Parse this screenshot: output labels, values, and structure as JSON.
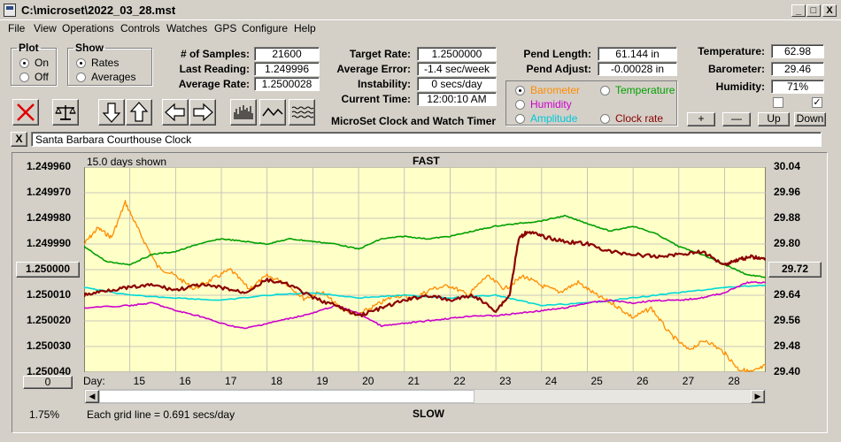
{
  "window": {
    "title": "C:\\microset\\2022_03_28.mst",
    "min": "_",
    "max": "□",
    "close": "X"
  },
  "menu": [
    "File",
    "View",
    "Operations",
    "Controls",
    "Watches",
    "GPS",
    "Configure",
    "Help"
  ],
  "plot": {
    "legend": "Plot",
    "on": "On",
    "off": "Off",
    "selected": "On"
  },
  "show": {
    "legend": "Show",
    "rates": "Rates",
    "averages": "Averages",
    "selected": "Rates"
  },
  "stats": {
    "samples_label": "# of Samples:",
    "samples": "21600",
    "last_label": "Last Reading:",
    "last": "1.249996",
    "avg_rate_label": "Average Rate:",
    "avg_rate": "1.2500028",
    "target_label": "Target Rate:",
    "target": "1.2500000",
    "avg_err_label": "Average Error:",
    "avg_err": "-1.4 sec/week",
    "instab_label": "Instability:",
    "instab": "0 secs/day",
    "time_label": "Current Time:",
    "time": "12:00:10 AM",
    "pend_len_label": "Pend Length:",
    "pend_len": "61.144 in",
    "pend_adj_label": "Pend Adjust:",
    "pend_adj": "-0.00028 in",
    "temp_label": "Temperature:",
    "temp": "62.98",
    "baro_label": "Barometer:",
    "baro": "29.46",
    "hum_label": "Humidity:",
    "hum": "71%"
  },
  "app_title": "MicroSet Clock and Watch Timer",
  "series_select": {
    "barometer": "Barometer",
    "temperature": "Temperature",
    "humidity": "Humidity",
    "amplitude": "Amplitude",
    "clock": "Clock rate",
    "selected": "Barometer",
    "colors": {
      "barometer": "#ff8c00",
      "temperature": "#00a000",
      "humidity": "#cc00cc",
      "amplitude": "#00d8d8",
      "clock": "#8b0000"
    }
  },
  "small_buttons": {
    "plus": "+",
    "minus": "—",
    "up": "Up",
    "down": "Down"
  },
  "watch_name": "Santa Barbara Courthouse Clock",
  "close_x": "X",
  "chart_data": {
    "type": "line",
    "top_label": "FAST",
    "bottom_label": "SLOW",
    "days_shown": "15.0 days shown",
    "grid_note": "Each grid line = 0.691 secs/day",
    "left_value_box": "1.250000",
    "right_value_box": "29.72",
    "bottom_left_box": "0",
    "percent": "1.75%",
    "x_prefix": "Day:",
    "x_ticks": [
      "15",
      "16",
      "17",
      "18",
      "19",
      "20",
      "21",
      "22",
      "23",
      "24",
      "25",
      "26",
      "27",
      "28"
    ],
    "y_left_ticks": [
      "1.249960",
      "1.249970",
      "1.249980",
      "1.249990",
      "1.250000",
      "1.250010",
      "1.250020",
      "1.250030",
      "1.250040"
    ],
    "y_right_ticks": [
      "30.04",
      "29.96",
      "29.88",
      "29.80",
      "29.72",
      "29.64",
      "29.56",
      "29.48",
      "29.40"
    ],
    "xlim": [
      14.0,
      28.9
    ],
    "y_left_range": [
      1.25004,
      1.24996
    ],
    "y_right_range": [
      29.4,
      30.04
    ],
    "series": [
      {
        "key": "barometer",
        "x": [
          14.0,
          14.3,
          14.6,
          14.9,
          15.2,
          15.6,
          16.0,
          16.4,
          16.8,
          17.2,
          17.6,
          18.0,
          18.4,
          18.8,
          19.2,
          19.6,
          20.0,
          20.4,
          20.8,
          21.2,
          21.6,
          22.0,
          22.4,
          22.8,
          23.2,
          23.6,
          24.0,
          24.4,
          24.8,
          25.2,
          25.6,
          26.0,
          26.4,
          26.8,
          27.2,
          27.6,
          28.0,
          28.3,
          28.6,
          28.9
        ],
        "y": [
          29.8,
          29.85,
          29.82,
          29.93,
          29.84,
          29.73,
          29.7,
          29.66,
          29.69,
          29.72,
          29.66,
          29.7,
          29.68,
          29.63,
          29.65,
          29.6,
          29.58,
          29.61,
          29.64,
          29.63,
          29.66,
          29.67,
          29.64,
          29.7,
          29.66,
          29.7,
          29.67,
          29.65,
          29.68,
          29.64,
          29.61,
          29.57,
          29.6,
          29.52,
          29.47,
          29.5,
          29.46,
          29.41,
          29.4,
          29.42
        ]
      },
      {
        "key": "temperature",
        "x": [
          14.0,
          14.5,
          15.0,
          15.5,
          16.0,
          16.5,
          17.0,
          17.5,
          18.0,
          18.5,
          19.0,
          19.5,
          20.0,
          20.5,
          21.0,
          21.5,
          22.0,
          22.5,
          23.0,
          23.5,
          24.0,
          24.5,
          25.0,
          25.5,
          26.0,
          26.5,
          27.0,
          27.5,
          28.0,
          28.5,
          28.9
        ],
        "y": [
          1.249991,
          1.249997,
          1.249998,
          1.249994,
          1.249993,
          1.24999,
          1.249988,
          1.249989,
          1.24999,
          1.249988,
          1.249989,
          1.24999,
          1.249992,
          1.249988,
          1.249987,
          1.249988,
          1.249987,
          1.249985,
          1.249983,
          1.249982,
          1.249981,
          1.249979,
          1.249982,
          1.249985,
          1.249983,
          1.249986,
          1.249991,
          1.249994,
          1.249998,
          1.250002,
          1.250003
        ]
      },
      {
        "key": "amplitude",
        "x": [
          14.0,
          15.0,
          16.0,
          17.0,
          18.0,
          19.0,
          20.0,
          21.0,
          22.0,
          23.0,
          23.5,
          24.0,
          25.0,
          26.0,
          27.0,
          28.0,
          28.9
        ],
        "y": [
          1.250007,
          1.25001,
          1.250011,
          1.250012,
          1.25001,
          1.250009,
          1.250011,
          1.25001,
          1.250011,
          1.25001,
          1.250012,
          1.250014,
          1.250013,
          1.250011,
          1.250009,
          1.250007,
          1.250006
        ]
      },
      {
        "key": "humidity",
        "x": [
          14.0,
          15.0,
          15.5,
          16.0,
          16.5,
          17.0,
          17.5,
          18.0,
          18.5,
          19.0,
          19.5,
          20.0,
          20.5,
          21.0,
          21.5,
          22.0,
          22.5,
          23.0,
          23.5,
          24.0,
          24.5,
          25.0,
          25.5,
          26.0,
          26.5,
          27.0,
          27.5,
          28.0,
          28.5,
          28.9
        ],
        "y": [
          1.250015,
          1.250014,
          1.250013,
          1.250016,
          1.250018,
          1.250021,
          1.250023,
          1.250021,
          1.250019,
          1.250017,
          1.250014,
          1.250017,
          1.250022,
          1.250021,
          1.25002,
          1.250019,
          1.250018,
          1.250018,
          1.250017,
          1.250016,
          1.250015,
          1.250013,
          1.250012,
          1.250013,
          1.250012,
          1.250012,
          1.250011,
          1.250009,
          1.250005,
          1.250005
        ]
      },
      {
        "key": "clock",
        "x": [
          14.0,
          14.5,
          15.0,
          15.5,
          16.0,
          16.5,
          17.0,
          17.5,
          18.0,
          18.5,
          19.0,
          19.5,
          20.0,
          20.5,
          21.0,
          21.5,
          22.0,
          22.5,
          23.0,
          23.3,
          23.5,
          23.7,
          24.0,
          24.5,
          25.0,
          25.5,
          26.0,
          26.5,
          27.0,
          27.5,
          28.0,
          28.3,
          28.6,
          28.9
        ],
        "y": [
          1.25001,
          1.250008,
          1.250007,
          1.250006,
          1.250008,
          1.250006,
          1.250007,
          1.250009,
          1.250004,
          1.250006,
          1.250011,
          1.250014,
          1.250018,
          1.250015,
          1.250012,
          1.25001,
          1.250012,
          1.25001,
          1.250016,
          1.25001,
          1.249988,
          1.249985,
          1.249987,
          1.249989,
          1.24999,
          1.249993,
          1.249994,
          1.249995,
          1.249994,
          1.249993,
          1.249998,
          1.249996,
          1.249995,
          1.249996
        ]
      }
    ]
  }
}
